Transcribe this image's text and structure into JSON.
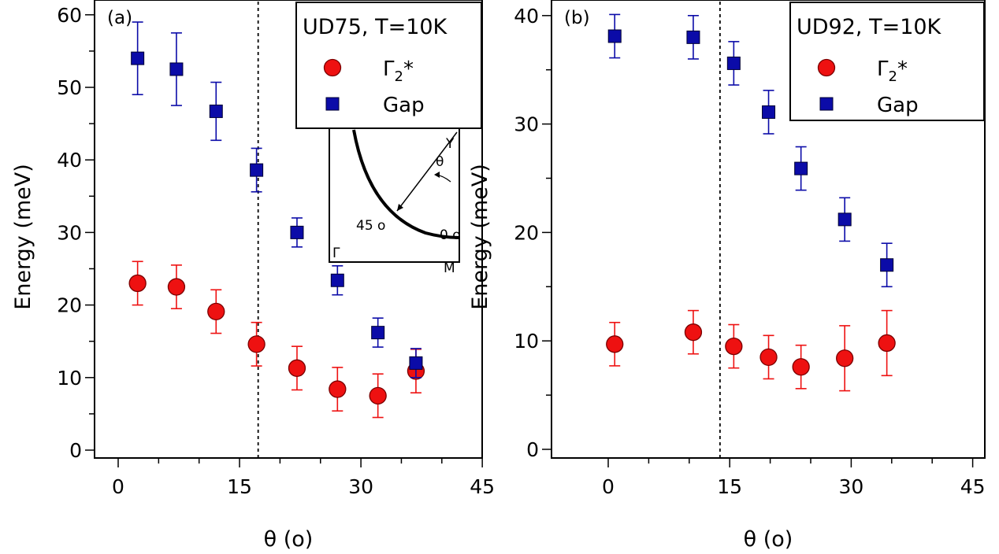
{
  "chart_data": [
    {
      "type": "scatter",
      "panel_label": "(a)",
      "xlabel": "θ (o)",
      "ylabel": "Energy (meV)",
      "xlim": [
        -1,
        45.5
      ],
      "ylim": [
        -1.5,
        60.5
      ],
      "xticks": [
        0,
        15,
        30,
        45
      ],
      "yticks": [
        0,
        10,
        20,
        30,
        40,
        50,
        60
      ],
      "grid": false,
      "vline_x": 17.3,
      "legend": {
        "placement": "top-right",
        "title": "UD75, T=10K",
        "entries": [
          {
            "series": 0,
            "symbol": "Γ",
            "subscript": "2",
            "suffix": "*"
          },
          {
            "series": 1,
            "text": "Gap"
          }
        ]
      },
      "series": [
        {
          "marker": "circle",
          "color": "#ee1111",
          "x": [
            2.4,
            7.2,
            12.1,
            17.1,
            22.1,
            27.1,
            32.1,
            36.8
          ],
          "y": [
            23.0,
            22.5,
            19.1,
            14.6,
            11.3,
            8.4,
            7.5,
            10.9
          ],
          "err": [
            3.0,
            3.0,
            3.0,
            3.0,
            3.0,
            3.0,
            3.0,
            3.0
          ]
        },
        {
          "marker": "square",
          "color": "#0b0ba8",
          "x": [
            2.4,
            7.2,
            12.1,
            17.1,
            22.1,
            27.1,
            32.1,
            36.8
          ],
          "y": [
            54.0,
            52.5,
            46.7,
            38.6,
            30.0,
            23.4,
            16.2,
            12.0
          ],
          "err": [
            5.0,
            5.0,
            4.0,
            3.0,
            2.0,
            2.0,
            2.0,
            2.0
          ]
        }
      ],
      "inset": {
        "labels": {
          "Y": "Y",
          "theta": "θ",
          "deg45": "45 o",
          "deg0": "0 o",
          "Gamma": "Γ",
          "M": "M"
        }
      }
    },
    {
      "type": "scatter",
      "panel_label": "(b)",
      "xlabel": "θ (o)",
      "ylabel": "Energy (meV)",
      "xlim": [
        -1,
        45.5
      ],
      "ylim": [
        -1,
        40.5
      ],
      "xticks": [
        0,
        15,
        30,
        45
      ],
      "yticks": [
        0,
        10,
        20,
        30,
        40
      ],
      "grid": false,
      "vline_x": 13.8,
      "legend": {
        "placement": "top-right",
        "title": "UD92, T=10K",
        "entries": [
          {
            "series": 0,
            "symbol": "Γ",
            "subscript": "2",
            "suffix": "*"
          },
          {
            "series": 1,
            "text": "Gap"
          }
        ]
      },
      "series": [
        {
          "marker": "circle",
          "color": "#ee1111",
          "x": [
            0.8,
            10.5,
            15.5,
            19.8,
            23.8,
            29.2,
            34.4
          ],
          "y": [
            9.7,
            10.8,
            9.5,
            8.5,
            7.6,
            8.4,
            9.8
          ],
          "err": [
            2.0,
            2.0,
            2.0,
            2.0,
            2.0,
            3.0,
            3.0
          ]
        },
        {
          "marker": "square",
          "color": "#0b0ba8",
          "x": [
            0.8,
            10.5,
            15.5,
            19.8,
            23.8,
            29.2,
            34.4
          ],
          "y": [
            38.1,
            38.0,
            35.6,
            31.1,
            25.9,
            21.2,
            17.0
          ],
          "err": [
            2.0,
            2.0,
            2.0,
            2.0,
            2.0,
            2.0,
            2.0
          ]
        }
      ]
    }
  ]
}
